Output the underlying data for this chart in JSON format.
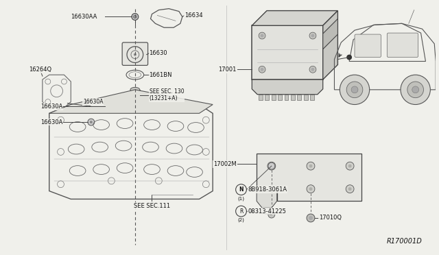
{
  "bg_color": "#f0f0eb",
  "line_color": "#333333",
  "text_color": "#111111",
  "ref_code": "R170001D",
  "see_sec_130": "SEE SEC. 130\n(13231+A)",
  "see_sec_111": "SEE SEC.111",
  "font_size_label": 6.0,
  "dpi": 100,
  "fig_w": 6.4,
  "fig_h": 3.72
}
